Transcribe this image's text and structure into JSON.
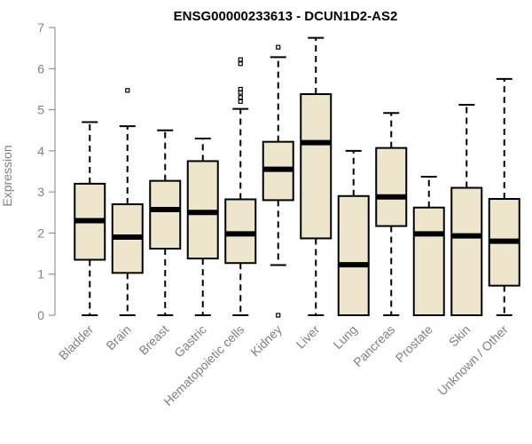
{
  "chart_data": {
    "type": "boxplot",
    "title": "ENSG00000233613 - DCUN1D2-AS2",
    "ylabel": "Expression",
    "xlabel": "",
    "ylim": [
      0,
      7
    ],
    "yticks": [
      "0",
      "1",
      "2",
      "3",
      "4",
      "5",
      "6",
      "7"
    ],
    "box_color": "#ede6cc",
    "categories": [
      "Bladder",
      "Brain",
      "Breast",
      "Gastric",
      "Hematopoietic cells",
      "Kidney",
      "Liver",
      "Lung",
      "Pancreas",
      "Prostate",
      "Skin",
      "Unknown / Other"
    ],
    "boxes": [
      {
        "min": 0,
        "q1": 1.35,
        "median": 2.3,
        "q3": 3.2,
        "max": 4.7,
        "outliers": []
      },
      {
        "min": 0,
        "q1": 1.03,
        "median": 1.9,
        "q3": 2.7,
        "max": 4.6,
        "outliers": [
          5.47
        ]
      },
      {
        "min": 0,
        "q1": 1.62,
        "median": 2.57,
        "q3": 3.27,
        "max": 4.5,
        "outliers": []
      },
      {
        "min": 0,
        "q1": 1.38,
        "median": 2.5,
        "q3": 3.75,
        "max": 4.3,
        "outliers": []
      },
      {
        "min": 0,
        "q1": 1.27,
        "median": 1.98,
        "q3": 2.82,
        "max": 5.02,
        "outliers": [
          5.2,
          5.3,
          5.42,
          5.5,
          6.12,
          6.22
        ]
      },
      {
        "min": 1.22,
        "q1": 2.8,
        "median": 3.55,
        "q3": 4.22,
        "max": 6.28,
        "outliers": [
          6.52,
          0.0
        ]
      },
      {
        "min": 0,
        "q1": 1.87,
        "median": 4.2,
        "q3": 5.38,
        "max": 6.75,
        "outliers": []
      },
      {
        "min": 0,
        "q1": 0,
        "median": 1.23,
        "q3": 2.9,
        "max": 4.0,
        "outliers": []
      },
      {
        "min": 0,
        "q1": 2.17,
        "median": 2.88,
        "q3": 4.07,
        "max": 4.92,
        "outliers": []
      },
      {
        "min": 0,
        "q1": 0,
        "median": 1.98,
        "q3": 2.62,
        "max": 3.37,
        "outliers": []
      },
      {
        "min": 0,
        "q1": 0,
        "median": 1.93,
        "q3": 3.1,
        "max": 5.12,
        "outliers": []
      },
      {
        "min": 0,
        "q1": 0.72,
        "median": 1.8,
        "q3": 2.83,
        "max": 5.75,
        "outliers": []
      }
    ]
  }
}
